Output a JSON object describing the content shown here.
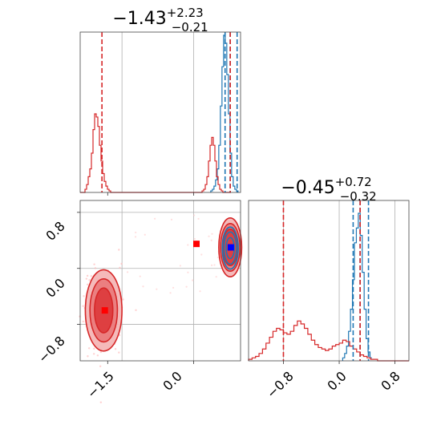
{
  "chart_data": {
    "type": "corner",
    "parameters": [
      {
        "title_main": "−1.43",
        "title_plus": "+2.23",
        "title_minus": "−0.21",
        "xlim": [
          -1.98,
          0.82
        ],
        "xticks": [
          -1.5,
          0.0
        ],
        "xticklabels": [
          "−1.5",
          "0.0"
        ],
        "grid_x": [
          -1.25,
          0.0
        ],
        "quantiles": {
          "blue": [
            0.55,
            0.64,
            0.76
          ],
          "red": [
            -1.6,
            0.64
          ]
        }
      },
      {
        "title_main": "−0.45",
        "title_plus": "+0.72",
        "title_minus": "−0.32",
        "xlim": [
          -1.3,
          1.0
        ],
        "xticks": [
          -0.8,
          0.0,
          0.8
        ],
        "xticklabels": [
          "−0.8",
          "0.0",
          "0.8"
        ],
        "yticks": [
          -0.8,
          0.0,
          0.8
        ],
        "yticklabels": [
          "−0.8",
          "0.0",
          "0.8"
        ],
        "ylim": [
          -1.32,
          0.97
        ],
        "grid_x": [
          -0.8,
          0.0,
          0.8
        ],
        "quantiles": {
          "blue": [
            0.2,
            0.3,
            0.42
          ],
          "red": [
            -0.8,
            0.3
          ]
        }
      }
    ],
    "series": [
      {
        "color": "#1f77b4",
        "hist_p1": {
          "start": 0.3,
          "width": 0.028,
          "heights": [
            0.01,
            0.02,
            0.04,
            0.08,
            0.15,
            0.3,
            0.55,
            0.8,
            1.0,
            0.95,
            0.75,
            0.5,
            0.25,
            0.1,
            0.04,
            0.02,
            0.01
          ]
        },
        "hist_p2": {
          "start": 0.05,
          "width": 0.028,
          "heights": [
            0.02,
            0.05,
            0.1,
            0.2,
            0.35,
            0.55,
            0.8,
            0.9,
            1.0,
            0.85,
            0.6,
            0.35,
            0.15,
            0.06,
            0.02
          ]
        },
        "point": [
          0.65,
          0.3
        ]
      },
      {
        "color": "#d62728",
        "hist_p1": {
          "start": -1.98,
          "width": 0.028,
          "heights": [
            0,
            0,
            0,
            0.02,
            0.05,
            0.1,
            0.15,
            0.25,
            0.4,
            0.5,
            0.48,
            0.42,
            0.3,
            0.2,
            0.12,
            0.07,
            0.04,
            0.02,
            0.01,
            0,
            0,
            0,
            0,
            0,
            0,
            0,
            0,
            0,
            0,
            0,
            0,
            0,
            0,
            0,
            0,
            0,
            0,
            0,
            0,
            0,
            0,
            0,
            0,
            0,
            0,
            0,
            0,
            0,
            0,
            0,
            0,
            0,
            0,
            0,
            0,
            0,
            0,
            0,
            0,
            0,
            0,
            0,
            0,
            0,
            0,
            0,
            0,
            0,
            0,
            0,
            0,
            0,
            0,
            0,
            0,
            0,
            0.01,
            0.02,
            0.05,
            0.1,
            0.2,
            0.3,
            0.35,
            0.3,
            0.2,
            0.1,
            0.05,
            0.02,
            0.01,
            0,
            0,
            0,
            0,
            0
          ]
        },
        "hist_p2": {
          "start": -1.3,
          "width": 0.05,
          "heights": [
            0.01,
            0.02,
            0.03,
            0.05,
            0.08,
            0.12,
            0.16,
            0.2,
            0.22,
            0.21,
            0.19,
            0.18,
            0.2,
            0.24,
            0.27,
            0.25,
            0.22,
            0.18,
            0.14,
            0.11,
            0.09,
            0.08,
            0.07,
            0.08,
            0.1,
            0.11,
            0.12,
            0.14,
            0.13,
            0.1,
            0.08,
            0.06,
            0.04,
            0.03,
            0.02,
            0.01,
            0.01,
            0,
            0,
            0,
            0,
            0,
            0,
            0,
            0,
            0
          ]
        },
        "points": [
          [
            -1.55,
            -0.6
          ],
          [
            0.05,
            0.35
          ]
        ]
      }
    ],
    "contours": [
      {
        "color": "#1f77b4",
        "center": [
          0.64,
          0.29
        ],
        "radii": [
          [
            0.14,
            0.3
          ],
          [
            0.11,
            0.23
          ],
          [
            0.07,
            0.15
          ]
        ]
      },
      {
        "color": "#d62728",
        "center": [
          0.64,
          0.3
        ],
        "radii": [
          [
            0.2,
            0.42
          ],
          [
            0.17,
            0.34
          ],
          [
            0.13,
            0.26
          ]
        ]
      },
      {
        "color": "#d62728",
        "center": [
          -1.57,
          -0.6
        ],
        "radii": [
          [
            0.32,
            0.58
          ],
          [
            0.24,
            0.45
          ],
          [
            0.16,
            0.32
          ]
        ]
      }
    ],
    "grid": true
  }
}
